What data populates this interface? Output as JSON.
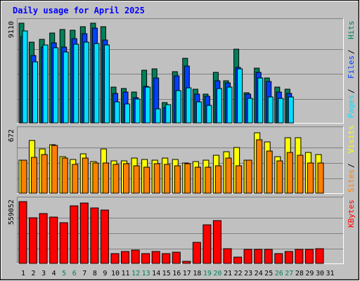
{
  "title": "Daily usage for April 2025",
  "colors": {
    "background": "#c0c0c0",
    "panel": "#c0c0c0",
    "gridline": "#808080",
    "title": "#0000ff",
    "weekday_label": "#000000",
    "weekend_label": "#00805c",
    "hits": "#00805c",
    "files": "#0040ff",
    "pages": "#00e0ff",
    "visits": "#ffff00",
    "sites": "#ff8000",
    "kbytes": "#ff0000",
    "legend_separator": "#000000"
  },
  "chart_data": [
    {
      "type": "bar",
      "name": "requests",
      "ylabel": "9110",
      "ylim": [
        0,
        9110
      ],
      "legend": [
        "Pages",
        "Files",
        "Hits"
      ],
      "legend_placement": "right",
      "categories": [
        "1",
        "2",
        "3",
        "4",
        "5",
        "6",
        "7",
        "8",
        "9",
        "10",
        "11",
        "12",
        "13",
        "14",
        "15",
        "16",
        "17",
        "18",
        "19",
        "20",
        "21",
        "22",
        "23",
        "24",
        "25",
        "26",
        "27",
        "28",
        "29",
        "30",
        "31"
      ],
      "weekend_days": [
        "5",
        "6",
        "12",
        "13",
        "19",
        "20",
        "26",
        "27"
      ],
      "series": [
        {
          "name": "Hits",
          "values": [
            9110,
            7390,
            7650,
            8230,
            8560,
            8450,
            8780,
            9110,
            8780,
            3270,
            3160,
            2830,
            4830,
            4920,
            1860,
            4710,
            5880,
            3050,
            2630,
            4640,
            3820,
            6720,
            2790,
            5020,
            4080,
            3270,
            3050,
            0,
            0,
            0,
            0
          ]
        },
        {
          "name": "Files",
          "values": [
            7870,
            6180,
            6940,
            7310,
            6950,
            7700,
            8120,
            8650,
            7600,
            2690,
            2830,
            2300,
            3350,
            4120,
            1420,
            4280,
            5190,
            2610,
            2420,
            3880,
            3660,
            5080,
            2600,
            4590,
            3760,
            2800,
            2670,
            0,
            0,
            0,
            0
          ]
        },
        {
          "name": "Pages",
          "values": [
            8380,
            5550,
            7150,
            6850,
            6490,
            7200,
            7350,
            7250,
            7150,
            1950,
            1750,
            2150,
            3250,
            1300,
            1650,
            2920,
            3190,
            1950,
            1600,
            3150,
            3240,
            4950,
            2250,
            4080,
            2380,
            2250,
            2400,
            0,
            0,
            0,
            0
          ]
        }
      ]
    },
    {
      "type": "bar",
      "name": "visitors",
      "ylabel": "672",
      "ylim": [
        0,
        672
      ],
      "legend": [
        "Sites",
        "Visits"
      ],
      "legend_placement": "right",
      "categories": [
        "1",
        "2",
        "3",
        "4",
        "5",
        "6",
        "7",
        "8",
        "9",
        "10",
        "11",
        "12",
        "13",
        "14",
        "15",
        "16",
        "17",
        "18",
        "19",
        "20",
        "21",
        "22",
        "23",
        "24",
        "25",
        "26",
        "27",
        "28",
        "29",
        "30",
        "31"
      ],
      "series": [
        {
          "name": "Visits",
          "values": [
            360,
            570,
            480,
            530,
            400,
            370,
            430,
            340,
            480,
            350,
            350,
            380,
            370,
            360,
            380,
            370,
            330,
            340,
            360,
            410,
            450,
            500,
            360,
            660,
            560,
            400,
            600,
            600,
            440,
            420,
            0
          ]
        },
        {
          "name": "Sites",
          "values": [
            360,
            390,
            420,
            520,
            380,
            310,
            380,
            330,
            330,
            310,
            320,
            300,
            280,
            320,
            310,
            300,
            320,
            280,
            280,
            300,
            380,
            300,
            360,
            580,
            460,
            350,
            440,
            410,
            330,
            330,
            0
          ]
        }
      ]
    },
    {
      "type": "bar",
      "name": "volume",
      "ylabel": "559052",
      "ylim": [
        0,
        559052
      ],
      "legend": [
        "KBytes"
      ],
      "legend_placement": "right",
      "categories": [
        "1",
        "2",
        "3",
        "4",
        "5",
        "6",
        "7",
        "8",
        "9",
        "10",
        "11",
        "12",
        "13",
        "14",
        "15",
        "16",
        "17",
        "18",
        "19",
        "20",
        "21",
        "22",
        "23",
        "24",
        "25",
        "26",
        "27",
        "28",
        "29",
        "30",
        "31"
      ],
      "series": [
        {
          "name": "KBytes",
          "values": [
            559052,
            410000,
            450000,
            420000,
            370000,
            520000,
            545000,
            505000,
            480000,
            90000,
            110000,
            120000,
            90000,
            110000,
            90000,
            100000,
            20000,
            190000,
            350000,
            385000,
            135000,
            60000,
            130000,
            130000,
            130000,
            90000,
            110000,
            130000,
            130000,
            135000,
            0
          ]
        }
      ]
    }
  ]
}
